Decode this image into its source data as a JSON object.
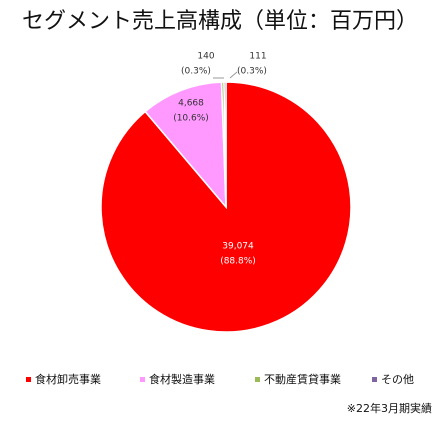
{
  "chart_data": {
    "type": "pie",
    "title": "セグメント売上高構成（単位：百万円）",
    "categories": [
      "食材卸売事業",
      "食材製造事業",
      "不動産賃貸事業",
      "その他"
    ],
    "values": [
      39074,
      4668,
      140,
      111
    ],
    "value_labels": [
      "39,074",
      "4,668",
      "140",
      "111"
    ],
    "percent_labels": [
      "(88.8%)",
      "(10.6%)",
      "(0.3%)",
      "(0.3%)"
    ],
    "colors": [
      "#ff0000",
      "#ff99ff",
      "#9bbb59",
      "#8064a2"
    ],
    "legend": "bottom",
    "note": "※22年3月期実績"
  }
}
